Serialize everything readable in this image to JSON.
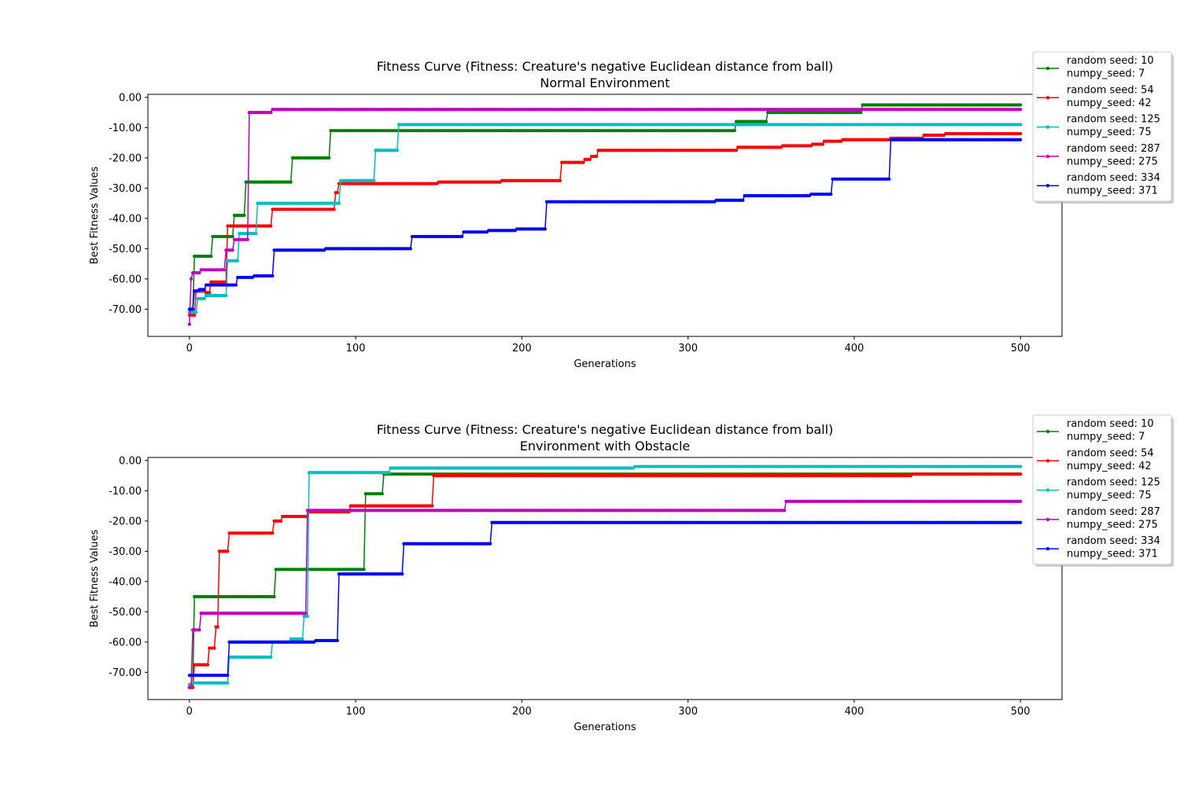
{
  "chart_data": [
    {
      "type": "line",
      "title": "Fitness Curve (Fitness: Creature's negative Euclidean distance from ball)",
      "subtitle": "Normal Environment",
      "xlabel": "Generations",
      "ylabel": "Best Fitness Values",
      "xlim": [
        -25,
        525
      ],
      "ylim": [
        -79,
        1
      ],
      "xticks": [
        0,
        100,
        200,
        300,
        400,
        500
      ],
      "yticks": [
        0,
        -10,
        -20,
        -30,
        -40,
        -50,
        -60,
        -70
      ],
      "xtick_labels": [
        "0",
        "100",
        "200",
        "300",
        "400",
        "500"
      ],
      "ytick_labels": [
        "0.00",
        "-10.00",
        "-20.00",
        "-30.00",
        "-40.00",
        "-50.00",
        "-60.00",
        "-70.00"
      ],
      "grid": false,
      "legend_position": "outside-top-right",
      "x_end": 500,
      "series": [
        {
          "name": "random seed: 10\nnumpy_seed: 7",
          "color": "#008000",
          "steps": [
            [
              0,
              -71
            ],
            [
              3,
              -52.5
            ],
            [
              14,
              -46
            ],
            [
              27,
              -39
            ],
            [
              34,
              -28
            ],
            [
              62,
              -20
            ],
            [
              85,
              -11
            ],
            [
              329,
              -8
            ],
            [
              348,
              -5
            ],
            [
              405,
              -2.5
            ]
          ]
        },
        {
          "name": "random seed: 54\nnumpy_seed: 42",
          "color": "#ff0000",
          "steps": [
            [
              0,
              -72
            ],
            [
              4,
              -64
            ],
            [
              10,
              -64.5
            ],
            [
              13,
              -61
            ],
            [
              23,
              -42.5
            ],
            [
              50,
              -37
            ],
            [
              88,
              -31.5
            ],
            [
              90,
              -28.5
            ],
            [
              150,
              -28
            ],
            [
              188,
              -27.5
            ],
            [
              224,
              -21.5
            ],
            [
              238,
              -20.5
            ],
            [
              242,
              -19.5
            ],
            [
              246,
              -17.5
            ],
            [
              330,
              -16.5
            ],
            [
              357,
              -16
            ],
            [
              375,
              -15.5
            ],
            [
              382,
              -14.5
            ],
            [
              393,
              -14
            ],
            [
              422,
              -13.5
            ],
            [
              442,
              -12.5
            ],
            [
              455,
              -12
            ]
          ]
        },
        {
          "name": "random seed: 125\nnumpy_seed: 75",
          "color": "#00bfbf",
          "steps": [
            [
              0,
              -71
            ],
            [
              5,
              -66.5
            ],
            [
              10,
              -65.5
            ],
            [
              23,
              -54
            ],
            [
              30,
              -45
            ],
            [
              41,
              -35
            ],
            [
              91,
              -27.5
            ],
            [
              112,
              -17.5
            ],
            [
              126,
              -9
            ]
          ]
        },
        {
          "name": "random seed: 287\nnumpy_seed: 275",
          "color": "#bf00bf",
          "steps": [
            [
              0,
              -75
            ],
            [
              1,
              -60
            ],
            [
              2,
              -58
            ],
            [
              7,
              -57
            ],
            [
              22,
              -50.5
            ],
            [
              27,
              -47
            ],
            [
              36,
              -5
            ],
            [
              50,
              -4
            ]
          ]
        },
        {
          "name": "random seed: 334\nnumpy_seed: 371",
          "color": "#0000ff",
          "steps": [
            [
              0,
              -70
            ],
            [
              3,
              -64
            ],
            [
              6,
              -63.5
            ],
            [
              10,
              -62
            ],
            [
              29,
              -59.5
            ],
            [
              39,
              -59
            ],
            [
              51,
              -50.5
            ],
            [
              82,
              -50
            ],
            [
              134,
              -46
            ],
            [
              165,
              -44.5
            ],
            [
              180,
              -44
            ],
            [
              197,
              -43.5
            ],
            [
              215,
              -34.5
            ],
            [
              317,
              -34
            ],
            [
              334,
              -32.5
            ],
            [
              374,
              -32
            ],
            [
              387,
              -27
            ],
            [
              422,
              -14
            ]
          ]
        }
      ]
    },
    {
      "type": "line",
      "title": "Fitness Curve (Fitness: Creature's negative Euclidean distance from ball)",
      "subtitle": "Environment with Obstacle",
      "xlabel": "Generations",
      "ylabel": "Best Fitness Values",
      "xlim": [
        -25,
        525
      ],
      "ylim": [
        -79,
        1
      ],
      "xticks": [
        0,
        100,
        200,
        300,
        400,
        500
      ],
      "yticks": [
        0,
        -10,
        -20,
        -30,
        -40,
        -50,
        -60,
        -70
      ],
      "xtick_labels": [
        "0",
        "100",
        "200",
        "300",
        "400",
        "500"
      ],
      "ytick_labels": [
        "0.00",
        "-10.00",
        "-20.00",
        "-30.00",
        "-40.00",
        "-50.00",
        "-60.00",
        "-70.00"
      ],
      "grid": false,
      "legend_position": "outside-top-right",
      "x_end": 500,
      "series": [
        {
          "name": "random seed: 10\nnumpy_seed: 7",
          "color": "#008000",
          "steps": [
            [
              0,
              -75
            ],
            [
              3,
              -45
            ],
            [
              52,
              -36
            ],
            [
              106,
              -11
            ],
            [
              117,
              -4.5
            ]
          ]
        },
        {
          "name": "random seed: 54\nnumpy_seed: 42",
          "color": "#ff0000",
          "steps": [
            [
              0,
              -75
            ],
            [
              3,
              -67.5
            ],
            [
              12,
              -62
            ],
            [
              16,
              -55
            ],
            [
              18,
              -30
            ],
            [
              24,
              -24
            ],
            [
              51,
              -20
            ],
            [
              56,
              -18.5
            ],
            [
              72,
              -17
            ],
            [
              97,
              -15
            ],
            [
              147,
              -5
            ],
            [
              435,
              -4.5
            ]
          ]
        },
        {
          "name": "random seed: 125\nnumpy_seed: 75",
          "color": "#00bfbf",
          "steps": [
            [
              0,
              -74
            ],
            [
              2,
              -73.5
            ],
            [
              24,
              -65
            ],
            [
              50,
              -60
            ],
            [
              61,
              -59
            ],
            [
              69,
              -51.5
            ],
            [
              72,
              -4
            ],
            [
              121,
              -2.5
            ],
            [
              268,
              -2
            ]
          ]
        },
        {
          "name": "random seed: 287\nnumpy_seed: 275",
          "color": "#bf00bf",
          "steps": [
            [
              0,
              -75
            ],
            [
              2,
              -56
            ],
            [
              7,
              -50.5
            ],
            [
              71,
              -16.5
            ],
            [
              359,
              -13.5
            ]
          ]
        },
        {
          "name": "random seed: 334\nnumpy_seed: 371",
          "color": "#0000ff",
          "steps": [
            [
              0,
              -71
            ],
            [
              24,
              -60
            ],
            [
              76,
              -59.5
            ],
            [
              90,
              -37.5
            ],
            [
              129,
              -27.5
            ],
            [
              182,
              -20.5
            ]
          ]
        }
      ]
    }
  ]
}
